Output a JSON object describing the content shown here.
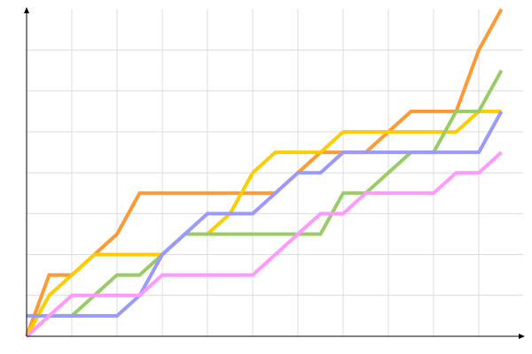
{
  "chart_data": {
    "type": "line",
    "title": "",
    "xlabel": "",
    "ylabel": "",
    "xlim": [
      0,
      21.8
    ],
    "ylim": [
      0,
      16
    ],
    "grid": true,
    "x_grid_step": 2,
    "y_grid_step": 2,
    "legend": "none",
    "series": [
      {
        "color": "#ff9933",
        "points": [
          [
            0,
            0
          ],
          [
            1,
            3
          ],
          [
            2,
            3
          ],
          [
            4,
            5
          ],
          [
            5,
            7
          ],
          [
            11,
            7
          ],
          [
            13,
            9
          ],
          [
            15,
            9
          ],
          [
            17,
            11
          ],
          [
            19,
            11
          ],
          [
            20,
            14
          ],
          [
            21,
            16
          ]
        ]
      },
      {
        "color": "#ffcc00",
        "points": [
          [
            0,
            0
          ],
          [
            1,
            2
          ],
          [
            2,
            3
          ],
          [
            3,
            4
          ],
          [
            6,
            4
          ],
          [
            7,
            5
          ],
          [
            8,
            5
          ],
          [
            9,
            6
          ],
          [
            10,
            8
          ],
          [
            11,
            9
          ],
          [
            13,
            9
          ],
          [
            14,
            10
          ],
          [
            19,
            10
          ],
          [
            20,
            11
          ],
          [
            21,
            11
          ]
        ]
      },
      {
        "color": "#99cc66",
        "points": [
          [
            0,
            0
          ],
          [
            1,
            1
          ],
          [
            2,
            1
          ],
          [
            4,
            3
          ],
          [
            5,
            3
          ],
          [
            7,
            5
          ],
          [
            13,
            5
          ],
          [
            14,
            7
          ],
          [
            15,
            7
          ],
          [
            17,
            9
          ],
          [
            18,
            9
          ],
          [
            19,
            11
          ],
          [
            20,
            11
          ],
          [
            21,
            13
          ]
        ]
      },
      {
        "color": "#9999ff",
        "points": [
          [
            0,
            1
          ],
          [
            4,
            1
          ],
          [
            5,
            2
          ],
          [
            6,
            4
          ],
          [
            7,
            5
          ],
          [
            8,
            6
          ],
          [
            10,
            6
          ],
          [
            11,
            7
          ],
          [
            12,
            8
          ],
          [
            13,
            8
          ],
          [
            14,
            9
          ],
          [
            20,
            9
          ],
          [
            21,
            11
          ]
        ]
      },
      {
        "color": "#ff99ff",
        "points": [
          [
            0,
            0
          ],
          [
            1,
            1
          ],
          [
            2,
            2
          ],
          [
            5,
            2
          ],
          [
            6,
            3
          ],
          [
            10,
            3
          ],
          [
            11,
            4
          ],
          [
            12,
            5
          ],
          [
            13,
            6
          ],
          [
            14,
            6
          ],
          [
            15,
            7
          ],
          [
            18,
            7
          ],
          [
            19,
            8
          ],
          [
            20,
            8
          ],
          [
            21,
            9
          ]
        ]
      }
    ]
  }
}
